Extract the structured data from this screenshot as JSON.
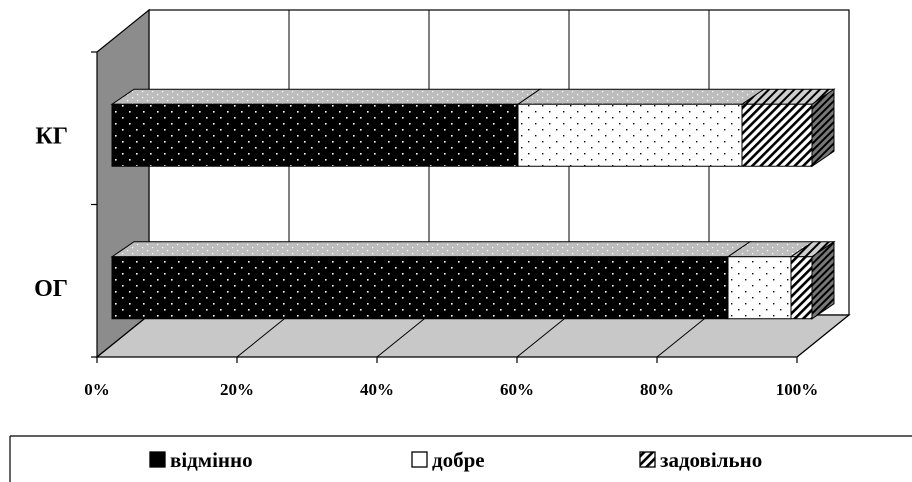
{
  "chart_data": {
    "type": "bar",
    "orientation": "horizontal",
    "stacked": "100%",
    "three_d": true,
    "categories": [
      "ОГ",
      "КГ"
    ],
    "series": [
      {
        "name": "відмінно",
        "values": [
          88,
          58
        ],
        "pattern": "dots-on-black"
      },
      {
        "name": "добре",
        "values": [
          9,
          32
        ],
        "pattern": "dots-on-white"
      },
      {
        "name": "задовільно",
        "values": [
          3,
          10
        ],
        "pattern": "diagonal-hatch"
      }
    ],
    "xaxis": {
      "min": 0,
      "max": 100,
      "step": 20,
      "tick_suffix": "%"
    },
    "grid": true,
    "legend": "bottom"
  }
}
